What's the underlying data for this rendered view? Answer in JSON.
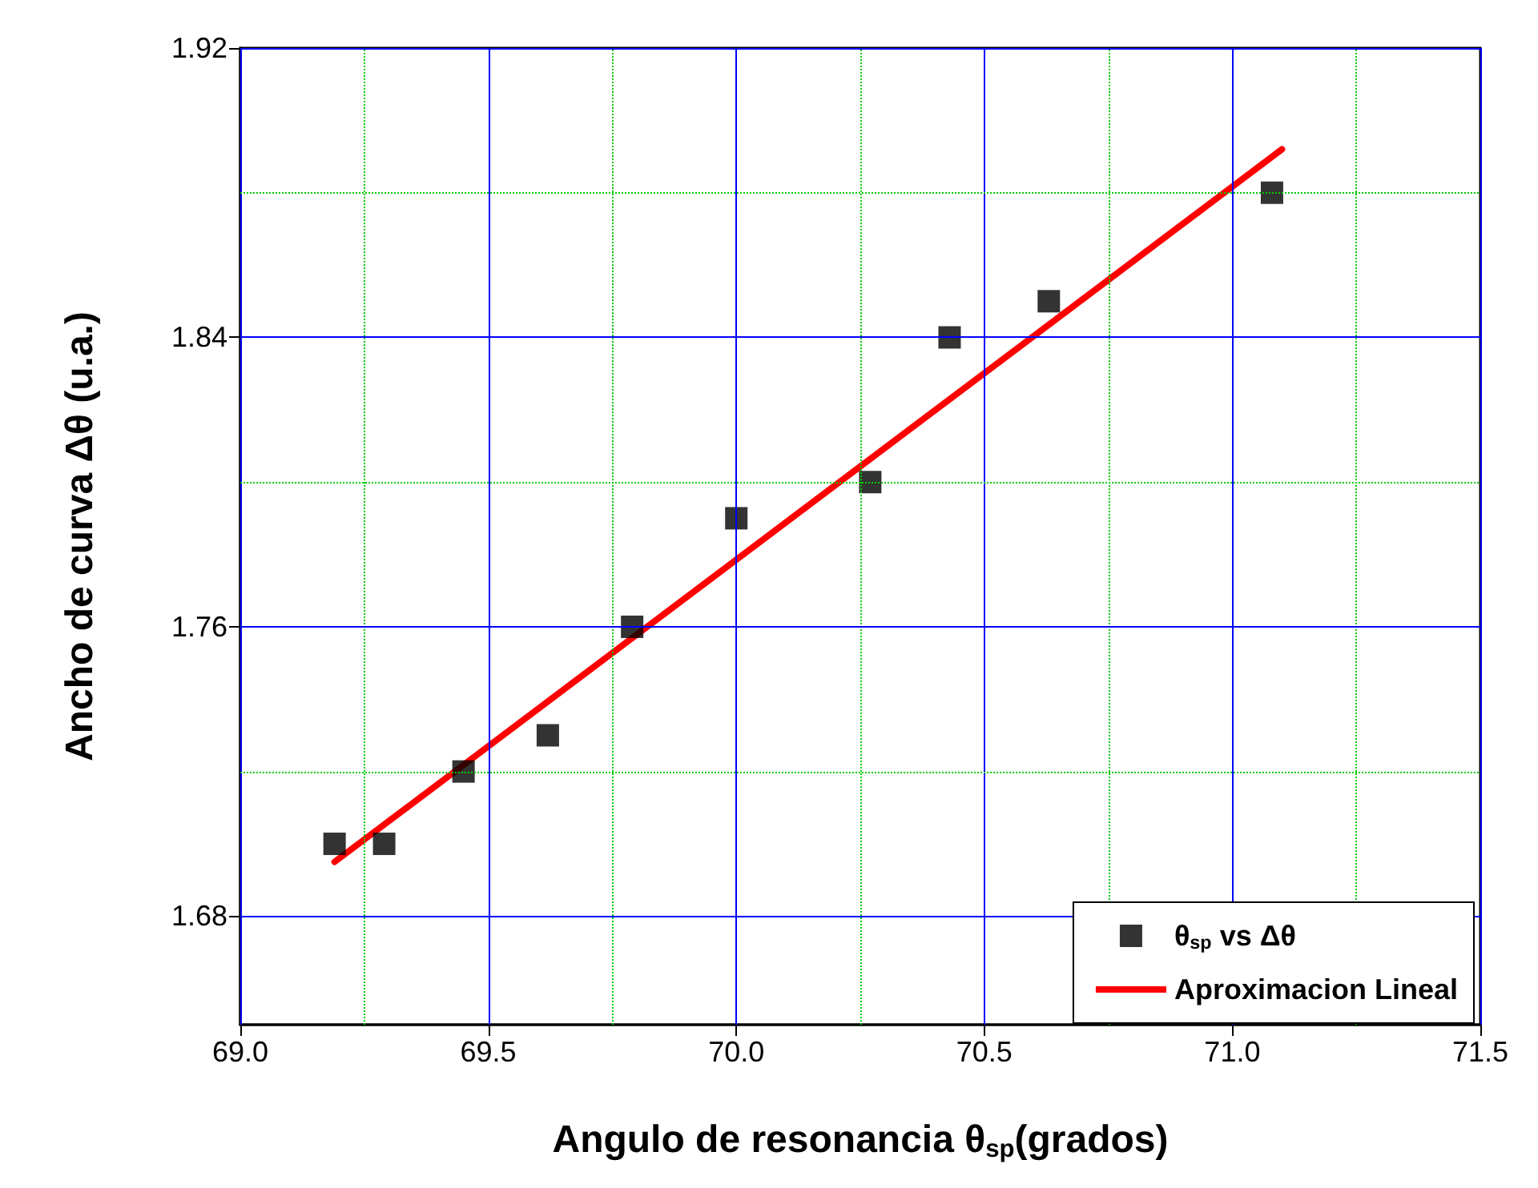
{
  "chart_data": {
    "type": "scatter",
    "xlabel": "Angulo de resonancia θ$_{sp}$(grados)",
    "ylabel": "Ancho de curva Δθ (u.a.)",
    "xlim": [
      69.0,
      71.5
    ],
    "xticks": [
      {
        "value": 69,
        "label": "69.0"
      },
      {
        "value": 69.25,
        "label": null
      },
      {
        "value": 69.5,
        "label": "69.5"
      },
      {
        "value": 69.75,
        "label": null
      },
      {
        "value": 70,
        "label": "70.0"
      },
      {
        "value": 70.25,
        "label": null
      },
      {
        "value": 70.5,
        "label": "70.5"
      },
      {
        "value": 70.75,
        "label": null
      },
      {
        "value": 71,
        "label": "71.0"
      },
      {
        "value": 71.25,
        "label": null
      },
      {
        "value": 71.5,
        "label": "71.5"
      }
    ],
    "ylim": [
      1.65,
      1.92
    ],
    "yticks": [
      1.68,
      {
        "value": 1.72,
        "label": null
      },
      1.76,
      {
        "value": 1.8,
        "label": null
      },
      1.84,
      {
        "value": 1.88,
        "label": null
      },
      1.92
    ],
    "grid": true,
    "legend": "bottom right",
    "series": [
      {
        "name": "θ$_{sp}$ vs Δθ",
        "marker": "square",
        "color": "#000000",
        "x": [
          69.19,
          69.29,
          69.45,
          69.62,
          69.79,
          70.0,
          70.27,
          70.43,
          70.63,
          71.08
        ],
        "values": [
          1.7,
          1.7,
          1.72,
          1.73,
          1.76,
          1.79,
          1.8,
          1.84,
          1.85,
          1.88
        ]
      },
      {
        "name": "Aproximacion Lineal",
        "type": "line",
        "marker": "none",
        "line_style": "solid",
        "color": "#ff0000",
        "x": [
          69.19,
          71.1
        ],
        "values": [
          1.695,
          1.892
        ]
      }
    ]
  }
}
